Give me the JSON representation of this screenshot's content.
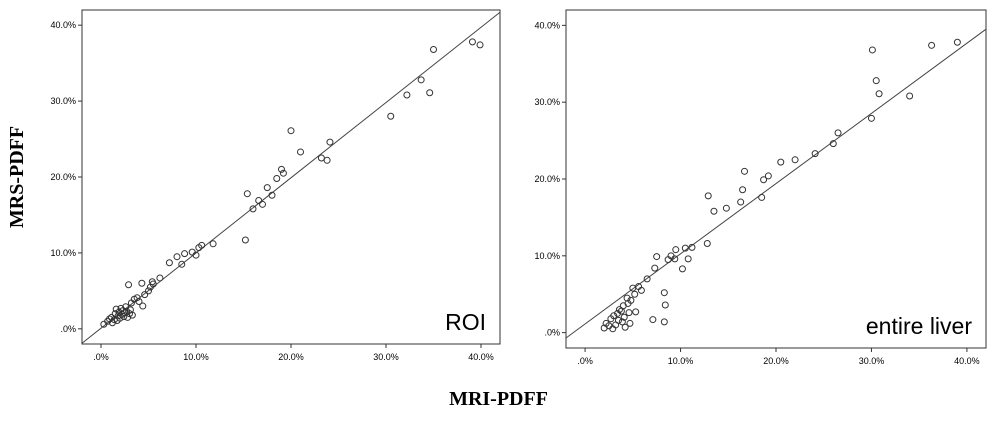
{
  "figure": {
    "ylabel": "MRS-PDFF",
    "xlabel": "MRI-PDFF"
  },
  "chart_data": [
    {
      "type": "scatter",
      "annotation": "ROI",
      "xlim": [
        -2,
        42
      ],
      "ylim": [
        -2,
        42
      ],
      "xticks": [
        0,
        10,
        20,
        30,
        40
      ],
      "yticks": [
        0,
        10,
        20,
        30,
        40
      ],
      "xtick_labels": [
        ".0%",
        "10.0%",
        "20.0%",
        "30.0%",
        "40.0%"
      ],
      "ytick_labels": [
        ".0%",
        "10.0%",
        "20.0%",
        "30.0%",
        "40.0%"
      ],
      "fit_line": {
        "x1": -2,
        "y1": -1.9,
        "x2": 42,
        "y2": 41.7
      },
      "points": [
        [
          0.3,
          0.6
        ],
        [
          0.7,
          1.0
        ],
        [
          0.9,
          1.3
        ],
        [
          1.1,
          1.5
        ],
        [
          1.2,
          0.8
        ],
        [
          1.4,
          1.2
        ],
        [
          1.5,
          2.0
        ],
        [
          1.6,
          2.6
        ],
        [
          1.7,
          1.1
        ],
        [
          1.8,
          1.7
        ],
        [
          1.9,
          2.2
        ],
        [
          2.0,
          1.4
        ],
        [
          2.1,
          2.7
        ],
        [
          2.2,
          1.9
        ],
        [
          2.3,
          2.4
        ],
        [
          2.4,
          1.6
        ],
        [
          2.5,
          2.1
        ],
        [
          2.6,
          2.9
        ],
        [
          2.7,
          2.3
        ],
        [
          2.8,
          1.5
        ],
        [
          2.9,
          5.8
        ],
        [
          3.0,
          2.0
        ],
        [
          3.1,
          2.5
        ],
        [
          3.2,
          3.4
        ],
        [
          3.3,
          1.8
        ],
        [
          3.5,
          3.9
        ],
        [
          3.8,
          4.1
        ],
        [
          4.0,
          3.6
        ],
        [
          4.3,
          6.0
        ],
        [
          4.4,
          3.0
        ],
        [
          4.6,
          4.5
        ],
        [
          5.0,
          5.0
        ],
        [
          5.2,
          5.5
        ],
        [
          5.4,
          6.2
        ],
        [
          5.5,
          5.9
        ],
        [
          6.2,
          6.7
        ],
        [
          7.2,
          8.7
        ],
        [
          8.0,
          9.5
        ],
        [
          8.5,
          8.5
        ],
        [
          8.8,
          9.9
        ],
        [
          9.6,
          10.1
        ],
        [
          10.0,
          9.7
        ],
        [
          10.3,
          10.7
        ],
        [
          10.6,
          11.0
        ],
        [
          11.8,
          11.2
        ],
        [
          15.2,
          11.7
        ],
        [
          15.4,
          17.8
        ],
        [
          16.0,
          15.8
        ],
        [
          16.6,
          16.9
        ],
        [
          17.0,
          16.4
        ],
        [
          17.5,
          18.6
        ],
        [
          18.0,
          17.6
        ],
        [
          18.5,
          19.8
        ],
        [
          19.0,
          21.0
        ],
        [
          19.2,
          20.5
        ],
        [
          20.0,
          26.1
        ],
        [
          21.0,
          23.3
        ],
        [
          23.2,
          22.5
        ],
        [
          23.8,
          22.2
        ],
        [
          24.1,
          24.6
        ],
        [
          30.5,
          28.0
        ],
        [
          32.2,
          30.8
        ],
        [
          33.7,
          32.8
        ],
        [
          34.6,
          31.1
        ],
        [
          35.0,
          36.8
        ],
        [
          39.1,
          37.8
        ],
        [
          39.9,
          37.4
        ]
      ]
    },
    {
      "type": "scatter",
      "annotation": "entire liver",
      "xlim": [
        -2,
        42
      ],
      "ylim": [
        -2,
        42
      ],
      "xticks": [
        0,
        10,
        20,
        30,
        40
      ],
      "yticks": [
        0,
        10,
        20,
        30,
        40
      ],
      "xtick_labels": [
        ".0%",
        "10.0%",
        "20.0%",
        "30.0%",
        "40.0%"
      ],
      "ytick_labels": [
        ".0%",
        "10.0%",
        "20.0%",
        "30.0%",
        "40.0%"
      ],
      "fit_line": {
        "x1": -2,
        "y1": -0.7,
        "x2": 42,
        "y2": 39.5
      },
      "points": [
        [
          2.0,
          0.6
        ],
        [
          2.2,
          1.2
        ],
        [
          2.5,
          0.9
        ],
        [
          2.7,
          1.8
        ],
        [
          2.9,
          0.5
        ],
        [
          3.0,
          2.2
        ],
        [
          3.2,
          1.0
        ],
        [
          3.4,
          2.5
        ],
        [
          3.5,
          1.6
        ],
        [
          3.6,
          3.0
        ],
        [
          3.8,
          2.8
        ],
        [
          3.9,
          1.4
        ],
        [
          4.0,
          3.5
        ],
        [
          4.1,
          2.0
        ],
        [
          4.2,
          0.7
        ],
        [
          4.4,
          4.5
        ],
        [
          4.5,
          3.8
        ],
        [
          4.6,
          2.6
        ],
        [
          4.7,
          1.2
        ],
        [
          4.8,
          4.2
        ],
        [
          5.0,
          5.8
        ],
        [
          5.2,
          5.0
        ],
        [
          5.3,
          2.7
        ],
        [
          5.6,
          6.0
        ],
        [
          5.9,
          5.5
        ],
        [
          6.5,
          7.0
        ],
        [
          7.1,
          1.7
        ],
        [
          7.3,
          8.4
        ],
        [
          7.5,
          9.9
        ],
        [
          8.3,
          5.2
        ],
        [
          8.4,
          3.6
        ],
        [
          8.3,
          1.4
        ],
        [
          8.7,
          9.5
        ],
        [
          9.0,
          10.0
        ],
        [
          9.4,
          9.6
        ],
        [
          9.5,
          10.8
        ],
        [
          10.2,
          8.3
        ],
        [
          10.5,
          11.0
        ],
        [
          10.8,
          9.6
        ],
        [
          11.2,
          11.1
        ],
        [
          12.8,
          11.6
        ],
        [
          12.9,
          17.8
        ],
        [
          13.5,
          15.8
        ],
        [
          14.8,
          16.2
        ],
        [
          16.3,
          17.0
        ],
        [
          16.5,
          18.6
        ],
        [
          16.7,
          21.0
        ],
        [
          18.5,
          17.6
        ],
        [
          18.7,
          19.9
        ],
        [
          19.2,
          20.4
        ],
        [
          20.5,
          22.2
        ],
        [
          22.0,
          22.5
        ],
        [
          24.1,
          23.3
        ],
        [
          26.0,
          24.6
        ],
        [
          26.5,
          26.0
        ],
        [
          30.0,
          27.9
        ],
        [
          30.1,
          36.8
        ],
        [
          30.5,
          32.8
        ],
        [
          30.8,
          31.1
        ],
        [
          34.0,
          30.8
        ],
        [
          36.3,
          37.4
        ],
        [
          39.0,
          37.8
        ]
      ]
    }
  ]
}
